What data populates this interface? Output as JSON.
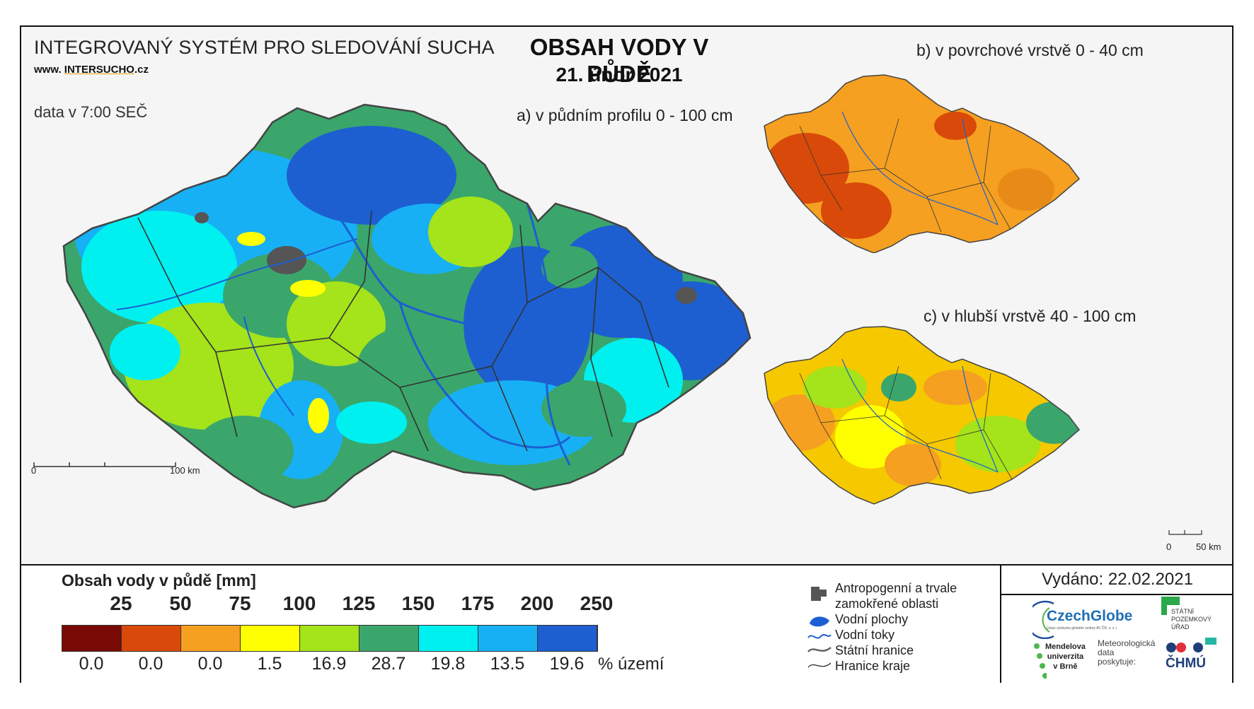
{
  "header": {
    "system_title": "INTEGROVANÝ SYSTÉM PRO SLEDOVÁNÍ SUCHA",
    "web_prefix": "www.",
    "web_main": "INTERSUCHO",
    "web_suffix": ".cz",
    "data_time": "data v 7:00 SEČ",
    "main_title": "OBSAH VODY V PŮDĚ",
    "main_date": "21. únor 2021"
  },
  "maps": {
    "a_label": "a) v půdním profilu 0 - 100 cm",
    "b_label": "b) v povrchové vrstvě 0 - 40 cm",
    "c_label": "c) v hlubší vrstvě 40 - 100 cm",
    "scale_main": {
      "start": "0",
      "end": "100 km"
    },
    "scale_small": {
      "start": "0",
      "end": "50 km"
    }
  },
  "legend": {
    "title": "Obsah vody v půdě  [mm]",
    "thresholds": [
      "25",
      "50",
      "75",
      "100",
      "125",
      "150",
      "175",
      "200",
      "250"
    ],
    "colors": [
      "#7a0a05",
      "#d94a0a",
      "#f5a020",
      "#ffff00",
      "#a5e31a",
      "#3aa66b",
      "#00f0f0",
      "#18b0f5",
      "#1d5fd0"
    ],
    "percent_area": [
      "0.0",
      "0.0",
      "0.0",
      "1.5",
      "16.9",
      "28.7",
      "19.8",
      "13.5",
      "19.6"
    ],
    "percent_unit": "% území"
  },
  "symbols": {
    "anthropogenic_1": "Antropogenní a trvale",
    "anthropogenic_2": "zamokřené oblasti",
    "water_bodies": "Vodní plochy",
    "rivers": "Vodní toky",
    "state_border": "Státní hranice",
    "region_border": "Hranice kraje"
  },
  "issued": "Vydáno: 22.02.2021",
  "logos": {
    "czechglobe": "CzechGlobe",
    "czechglobe_sub": "Ústav výzkumu globální změny AV ČR, v. v. i.",
    "spu_1": "STÁTNÍ",
    "spu_2": "POZEMKOVÝ",
    "spu_3": "ÚŘAD",
    "mendel_1": "Mendelova",
    "mendel_2": "univerzita",
    "mendel_3": "v Brně",
    "met_1": "Meteorologická",
    "met_2": "data",
    "met_3": "poskytuje:",
    "chmu": "ČHMÚ"
  }
}
